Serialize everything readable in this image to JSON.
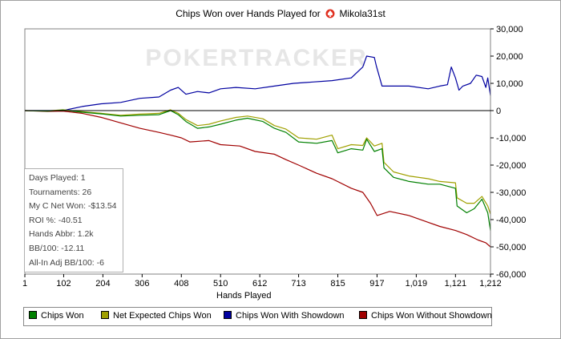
{
  "title": "Chips Won over Hands Played for",
  "player_name": "Mikola31st",
  "player_icon": "pokerstars-spade-icon",
  "watermark": "POKERTRACKER",
  "chart_data": {
    "type": "line",
    "title": "Chips Won over Hands Played for Mikola31st",
    "xlabel": "Hands Played",
    "ylabel": "",
    "xlim": [
      1,
      1212
    ],
    "ylim": [
      -60000,
      30000
    ],
    "x_ticks": [
      "1",
      "102",
      "204",
      "306",
      "408",
      "510",
      "612",
      "713",
      "815",
      "917",
      "1,019",
      "1,121",
      "1,212"
    ],
    "x_tick_values": [
      1,
      102,
      204,
      306,
      408,
      510,
      612,
      713,
      815,
      917,
      1019,
      1121,
      1212
    ],
    "y_ticks": [
      "30,000",
      "20,000",
      "10,000",
      "0",
      "-10,000",
      "-20,000",
      "-30,000",
      "-40,000",
      "-50,000",
      "-60,000"
    ],
    "y_tick_values": [
      30000,
      20000,
      10000,
      0,
      -10000,
      -20000,
      -30000,
      -40000,
      -50000,
      -60000
    ],
    "grid": false,
    "legend_position": "bottom",
    "series": [
      {
        "name": "Chips Won",
        "color": "#008000",
        "points": [
          [
            1,
            0
          ],
          [
            60,
            -200
          ],
          [
            100,
            200
          ],
          [
            150,
            -600
          ],
          [
            200,
            -1200
          ],
          [
            250,
            -2000
          ],
          [
            300,
            -1700
          ],
          [
            350,
            -1500
          ],
          [
            380,
            0
          ],
          [
            400,
            -1500
          ],
          [
            420,
            -4000
          ],
          [
            450,
            -6500
          ],
          [
            480,
            -6000
          ],
          [
            510,
            -5000
          ],
          [
            550,
            -3500
          ],
          [
            580,
            -2800
          ],
          [
            620,
            -4000
          ],
          [
            650,
            -6500
          ],
          [
            680,
            -8000
          ],
          [
            713,
            -11500
          ],
          [
            760,
            -12000
          ],
          [
            800,
            -11000
          ],
          [
            815,
            -15500
          ],
          [
            850,
            -14000
          ],
          [
            880,
            -14500
          ],
          [
            890,
            -10500
          ],
          [
            910,
            -15000
          ],
          [
            930,
            -14000
          ],
          [
            935,
            -21000
          ],
          [
            960,
            -24500
          ],
          [
            1000,
            -26000
          ],
          [
            1050,
            -27000
          ],
          [
            1080,
            -27000
          ],
          [
            1121,
            -28500
          ],
          [
            1125,
            -35000
          ],
          [
            1150,
            -37500
          ],
          [
            1170,
            -36000
          ],
          [
            1190,
            -32500
          ],
          [
            1205,
            -37500
          ],
          [
            1212,
            -44000
          ]
        ]
      },
      {
        "name": "Net Expected Chips Won",
        "color": "#a0a000",
        "points": [
          [
            1,
            0
          ],
          [
            60,
            -100
          ],
          [
            100,
            300
          ],
          [
            150,
            -400
          ],
          [
            200,
            -1000
          ],
          [
            250,
            -1700
          ],
          [
            300,
            -1300
          ],
          [
            350,
            -1000
          ],
          [
            380,
            300
          ],
          [
            400,
            -1000
          ],
          [
            420,
            -3300
          ],
          [
            450,
            -5500
          ],
          [
            480,
            -5000
          ],
          [
            510,
            -3800
          ],
          [
            550,
            -2500
          ],
          [
            580,
            -2000
          ],
          [
            620,
            -3000
          ],
          [
            650,
            -5500
          ],
          [
            680,
            -6800
          ],
          [
            713,
            -10000
          ],
          [
            760,
            -10500
          ],
          [
            800,
            -9000
          ],
          [
            815,
            -14000
          ],
          [
            850,
            -12500
          ],
          [
            880,
            -12800
          ],
          [
            890,
            -10000
          ],
          [
            910,
            -13000
          ],
          [
            930,
            -12000
          ],
          [
            935,
            -19000
          ],
          [
            960,
            -22500
          ],
          [
            1000,
            -24000
          ],
          [
            1050,
            -25000
          ],
          [
            1080,
            -26000
          ],
          [
            1121,
            -26500
          ],
          [
            1125,
            -32000
          ],
          [
            1150,
            -34000
          ],
          [
            1170,
            -34000
          ],
          [
            1190,
            -31500
          ],
          [
            1205,
            -35000
          ],
          [
            1212,
            -38000
          ]
        ]
      },
      {
        "name": "Chips Won With Showdown",
        "color": "#0000a0",
        "points": [
          [
            1,
            0
          ],
          [
            100,
            0
          ],
          [
            150,
            1500
          ],
          [
            200,
            2500
          ],
          [
            250,
            3000
          ],
          [
            300,
            4500
          ],
          [
            350,
            5000
          ],
          [
            380,
            7500
          ],
          [
            400,
            8500
          ],
          [
            420,
            6000
          ],
          [
            450,
            7000
          ],
          [
            480,
            6500
          ],
          [
            510,
            8000
          ],
          [
            550,
            8500
          ],
          [
            600,
            8000
          ],
          [
            650,
            9000
          ],
          [
            700,
            10000
          ],
          [
            750,
            10500
          ],
          [
            800,
            11000
          ],
          [
            850,
            12000
          ],
          [
            880,
            16000
          ],
          [
            890,
            20000
          ],
          [
            910,
            19500
          ],
          [
            915,
            16500
          ],
          [
            930,
            9000
          ],
          [
            1000,
            9000
          ],
          [
            1050,
            8000
          ],
          [
            1080,
            9000
          ],
          [
            1100,
            9500
          ],
          [
            1110,
            16000
          ],
          [
            1121,
            12000
          ],
          [
            1130,
            7500
          ],
          [
            1140,
            9000
          ],
          [
            1160,
            10000
          ],
          [
            1175,
            13000
          ],
          [
            1190,
            12500
          ],
          [
            1200,
            8500
          ],
          [
            1205,
            12000
          ],
          [
            1212,
            5500
          ]
        ]
      },
      {
        "name": "Chips Won Without Showdown",
        "color": "#a00000",
        "points": [
          [
            1,
            0
          ],
          [
            60,
            -300
          ],
          [
            100,
            -200
          ],
          [
            150,
            -1000
          ],
          [
            200,
            -2500
          ],
          [
            250,
            -4500
          ],
          [
            300,
            -6500
          ],
          [
            350,
            -8000
          ],
          [
            380,
            -9000
          ],
          [
            408,
            -10000
          ],
          [
            430,
            -11500
          ],
          [
            480,
            -11000
          ],
          [
            510,
            -12500
          ],
          [
            560,
            -13000
          ],
          [
            600,
            -15000
          ],
          [
            650,
            -16000
          ],
          [
            680,
            -18000
          ],
          [
            713,
            -20000
          ],
          [
            760,
            -23000
          ],
          [
            800,
            -25000
          ],
          [
            850,
            -28500
          ],
          [
            880,
            -30000
          ],
          [
            900,
            -34000
          ],
          [
            917,
            -38500
          ],
          [
            950,
            -37000
          ],
          [
            1000,
            -38500
          ],
          [
            1050,
            -41000
          ],
          [
            1080,
            -42500
          ],
          [
            1121,
            -44000
          ],
          [
            1150,
            -45500
          ],
          [
            1180,
            -47500
          ],
          [
            1200,
            -48500
          ],
          [
            1212,
            -50000
          ]
        ]
      }
    ]
  },
  "stats": [
    "Days Played: 1",
    "Tournaments: 26",
    "My C Net Won: -$13.54",
    "ROI %: -40.51",
    "Hands Abbr: 1.2k",
    "BB/100: -12.11",
    "All-In Adj BB/100: -6"
  ],
  "legend": [
    "Chips Won",
    "Net Expected Chips Won",
    "Chips Won With Showdown",
    "Chips Won Without Showdown"
  ]
}
